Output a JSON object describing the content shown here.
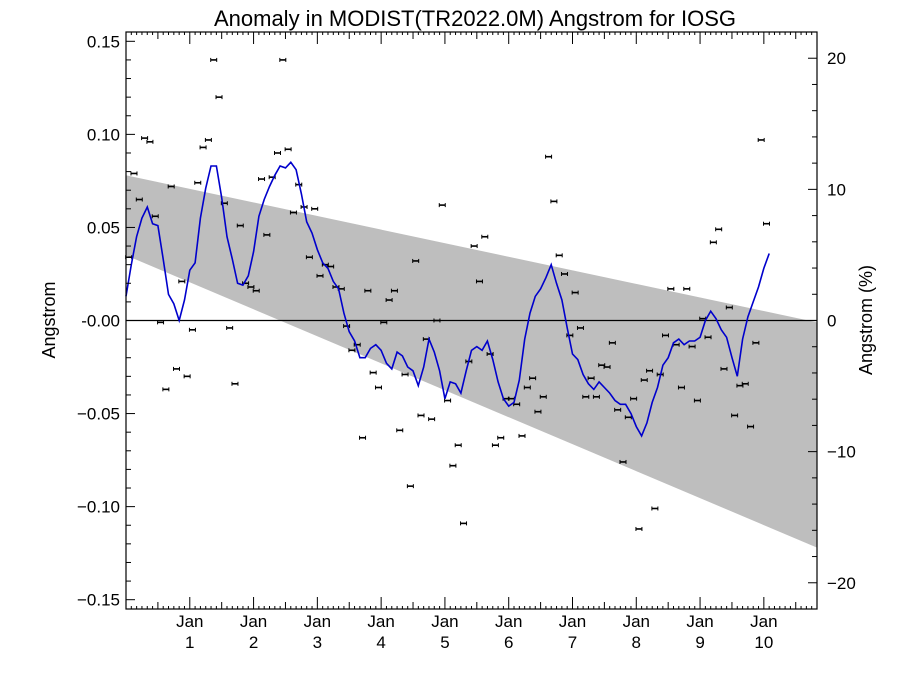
{
  "chart_data": {
    "type": "scatter",
    "title": "Anomaly in MODIST(TR2022.0M) Angstrom for IOSG",
    "ylabel_left": "Angstrom",
    "ylabel_right": "Angstrom (%)",
    "xlabel": "",
    "ylim": [
      -0.155,
      0.155
    ],
    "ylim_right_percent": [
      -22,
      22
    ],
    "xlim_months": [
      0,
      130
    ],
    "y_ticks": [
      0.15,
      0.1,
      0.05,
      0.0,
      -0.05,
      -0.1,
      -0.15
    ],
    "y_tick_labels": [
      "0.15",
      "0.10",
      "0.05",
      "-0.00",
      "−0.05",
      "−0.10",
      "−0.15"
    ],
    "y_right_ticks": [
      20,
      10,
      0,
      -10,
      -20
    ],
    "y_right_tick_labels": [
      "20",
      "10",
      "0",
      "−10",
      "−20"
    ],
    "x_ticks": [
      {
        "month": 12,
        "month_label": "Jan",
        "year_label": "1"
      },
      {
        "month": 24,
        "month_label": "Jan",
        "year_label": "2"
      },
      {
        "month": 36,
        "month_label": "Jan",
        "year_label": "3"
      },
      {
        "month": 48,
        "month_label": "Jan",
        "year_label": "4"
      },
      {
        "month": 60,
        "month_label": "Jan",
        "year_label": "5"
      },
      {
        "month": 72,
        "month_label": "Jan",
        "year_label": "6"
      },
      {
        "month": 84,
        "month_label": "Jan",
        "year_label": "7"
      },
      {
        "month": 96,
        "month_label": "Jan",
        "year_label": "8"
      },
      {
        "month": 108,
        "month_label": "Jan",
        "year_label": "9"
      },
      {
        "month": 120,
        "month_label": "Jan",
        "year_label": "10"
      }
    ],
    "trend_band": {
      "x": [
        0,
        130
      ],
      "upper": [
        0.078,
        -0.001
      ],
      "lower": [
        0.035,
        -0.122
      ]
    },
    "zero_line": 0,
    "monthly_points": [
      [
        0.5,
        0.034
      ],
      [
        1.5,
        0.079
      ],
      [
        2.5,
        0.065
      ],
      [
        3.5,
        0.098
      ],
      [
        4.5,
        0.096
      ],
      [
        5.5,
        0.056
      ],
      [
        6.5,
        -0.001
      ],
      [
        7.5,
        -0.037
      ],
      [
        8.5,
        0.072
      ],
      [
        9.5,
        -0.026
      ],
      [
        10.5,
        0.021
      ],
      [
        11.5,
        -0.03
      ],
      [
        12.5,
        -0.005
      ],
      [
        13.5,
        0.074
      ],
      [
        14.5,
        0.093
      ],
      [
        15.5,
        0.097
      ],
      [
        16.5,
        0.14
      ],
      [
        17.5,
        0.12
      ],
      [
        18.5,
        0.063
      ],
      [
        19.5,
        -0.004
      ],
      [
        20.5,
        -0.034
      ],
      [
        21.5,
        0.051
      ],
      [
        22.5,
        0.02
      ],
      [
        23.5,
        0.018
      ],
      [
        24.5,
        0.016
      ],
      [
        25.5,
        0.076
      ],
      [
        26.5,
        0.046
      ],
      [
        27.5,
        0.077
      ],
      [
        28.5,
        0.09
      ],
      [
        29.5,
        0.14
      ],
      [
        30.5,
        0.092
      ],
      [
        31.5,
        0.058
      ],
      [
        32.5,
        0.073
      ],
      [
        33.5,
        0.061
      ],
      [
        34.5,
        0.034
      ],
      [
        35.5,
        0.06
      ],
      [
        36.5,
        0.024
      ],
      [
        37.5,
        0.03
      ],
      [
        38.5,
        0.029
      ],
      [
        39.5,
        0.018
      ],
      [
        40.5,
        0.017
      ],
      [
        41.5,
        -0.003
      ],
      [
        42.5,
        -0.016
      ],
      [
        43.5,
        -0.013
      ],
      [
        44.5,
        -0.063
      ],
      [
        45.5,
        0.016
      ],
      [
        46.5,
        -0.028
      ],
      [
        47.5,
        -0.036
      ],
      [
        48.5,
        -0.001
      ],
      [
        49.5,
        0.011
      ],
      [
        50.5,
        0.016
      ],
      [
        51.5,
        -0.059
      ],
      [
        52.5,
        -0.029
      ],
      [
        53.5,
        -0.089
      ],
      [
        54.5,
        0.032
      ],
      [
        55.5,
        -0.051
      ],
      [
        56.5,
        -0.01
      ],
      [
        57.5,
        -0.053
      ],
      [
        58.5,
        0.0
      ],
      [
        59.5,
        0.062
      ],
      [
        60.5,
        -0.043
      ],
      [
        61.5,
        -0.078
      ],
      [
        62.5,
        -0.067
      ],
      [
        63.5,
        -0.109
      ],
      [
        64.5,
        -0.022
      ],
      [
        65.5,
        0.04
      ],
      [
        66.5,
        0.021
      ],
      [
        67.5,
        0.045
      ],
      [
        68.5,
        -0.018
      ],
      [
        69.5,
        -0.067
      ],
      [
        70.5,
        -0.063
      ],
      [
        71.5,
        -0.042
      ],
      [
        72.5,
        -0.042
      ],
      [
        73.5,
        -0.045
      ],
      [
        74.5,
        -0.062
      ],
      [
        75.5,
        -0.036
      ],
      [
        76.5,
        -0.031
      ],
      [
        77.5,
        -0.049
      ],
      [
        78.5,
        -0.041
      ],
      [
        79.5,
        0.088
      ],
      [
        80.5,
        0.064
      ],
      [
        81.5,
        0.035
      ],
      [
        82.5,
        0.025
      ],
      [
        83.5,
        -0.008
      ],
      [
        84.5,
        0.015
      ],
      [
        85.5,
        -0.004
      ],
      [
        86.5,
        -0.041
      ],
      [
        87.5,
        -0.031
      ],
      [
        88.5,
        -0.041
      ],
      [
        89.5,
        -0.024
      ],
      [
        90.5,
        -0.025
      ],
      [
        91.5,
        -0.012
      ],
      [
        92.5,
        -0.048
      ],
      [
        93.5,
        -0.076
      ],
      [
        94.5,
        -0.052
      ],
      [
        95.5,
        -0.042
      ],
      [
        96.5,
        -0.112
      ],
      [
        97.5,
        -0.032
      ],
      [
        98.5,
        -0.027
      ],
      [
        99.5,
        -0.101
      ],
      [
        100.5,
        -0.029
      ],
      [
        101.5,
        -0.008
      ],
      [
        102.5,
        0.017
      ],
      [
        103.5,
        -0.013
      ],
      [
        104.5,
        -0.036
      ],
      [
        105.5,
        0.017
      ],
      [
        106.5,
        -0.014
      ],
      [
        107.5,
        -0.043
      ],
      [
        108.5,
        0.001
      ],
      [
        109.5,
        -0.009
      ],
      [
        110.5,
        0.042
      ],
      [
        111.5,
        0.049
      ],
      [
        112.5,
        -0.026
      ],
      [
        113.5,
        0.007
      ],
      [
        114.5,
        -0.051
      ],
      [
        115.5,
        -0.035
      ],
      [
        116.5,
        -0.034
      ],
      [
        117.5,
        -0.057
      ],
      [
        118.5,
        -0.012
      ],
      [
        119.5,
        0.097
      ],
      [
        120.5,
        0.052
      ]
    ],
    "smoothed_x": [
      0,
      1,
      2,
      3,
      4,
      5,
      6,
      7,
      8,
      9,
      10,
      11,
      12,
      13,
      14,
      15,
      16,
      17,
      18,
      19,
      20,
      21,
      22,
      23,
      24,
      25,
      26,
      27,
      28,
      29,
      30,
      31,
      32,
      33,
      34,
      35,
      36,
      37,
      38,
      39,
      40,
      41,
      42,
      43,
      44,
      45,
      46,
      47,
      48,
      49,
      50,
      51,
      52,
      53,
      54,
      55,
      56,
      57,
      58,
      59,
      60,
      61,
      62,
      63,
      64,
      65,
      66,
      67,
      68,
      69,
      70,
      71,
      72,
      73,
      74,
      75,
      76,
      77,
      78,
      79,
      80,
      81,
      82,
      83,
      84,
      85,
      86,
      87,
      88,
      89,
      90,
      91,
      92,
      93,
      94,
      95,
      96,
      97,
      98,
      99,
      100,
      101,
      102,
      103,
      104,
      105,
      106,
      107,
      108,
      109,
      110,
      111,
      112,
      113,
      114,
      115,
      116,
      117,
      118,
      119,
      120,
      121
    ],
    "smoothed_y": [
      0.013,
      0.03,
      0.045,
      0.055,
      0.061,
      0.052,
      0.051,
      0.033,
      0.014,
      0.009,
      0.0,
      0.011,
      0.027,
      0.031,
      0.055,
      0.071,
      0.083,
      0.083,
      0.066,
      0.045,
      0.033,
      0.02,
      0.019,
      0.024,
      0.037,
      0.056,
      0.065,
      0.072,
      0.078,
      0.083,
      0.082,
      0.085,
      0.081,
      0.068,
      0.053,
      0.047,
      0.038,
      0.031,
      0.028,
      0.021,
      0.017,
      0.004,
      -0.006,
      -0.011,
      -0.02,
      -0.02,
      -0.015,
      -0.013,
      -0.016,
      -0.023,
      -0.026,
      -0.017,
      -0.019,
      -0.025,
      -0.027,
      -0.035,
      -0.025,
      -0.01,
      -0.017,
      -0.027,
      -0.042,
      -0.033,
      -0.034,
      -0.039,
      -0.027,
      -0.016,
      -0.014,
      -0.016,
      -0.011,
      -0.021,
      -0.033,
      -0.042,
      -0.046,
      -0.044,
      -0.032,
      -0.01,
      0.004,
      0.013,
      0.017,
      0.023,
      0.03,
      0.02,
      0.011,
      -0.004,
      -0.018,
      -0.021,
      -0.029,
      -0.034,
      -0.037,
      -0.033,
      -0.036,
      -0.039,
      -0.043,
      -0.045,
      -0.045,
      -0.05,
      -0.057,
      -0.062,
      -0.055,
      -0.044,
      -0.036,
      -0.024,
      -0.02,
      -0.012,
      -0.01,
      -0.013,
      -0.011,
      -0.011,
      -0.009,
      0.0,
      0.005,
      0.001,
      -0.005,
      -0.009,
      -0.02,
      -0.03,
      -0.01,
      0.002,
      0.01,
      0.018,
      0.028,
      0.036
    ]
  }
}
